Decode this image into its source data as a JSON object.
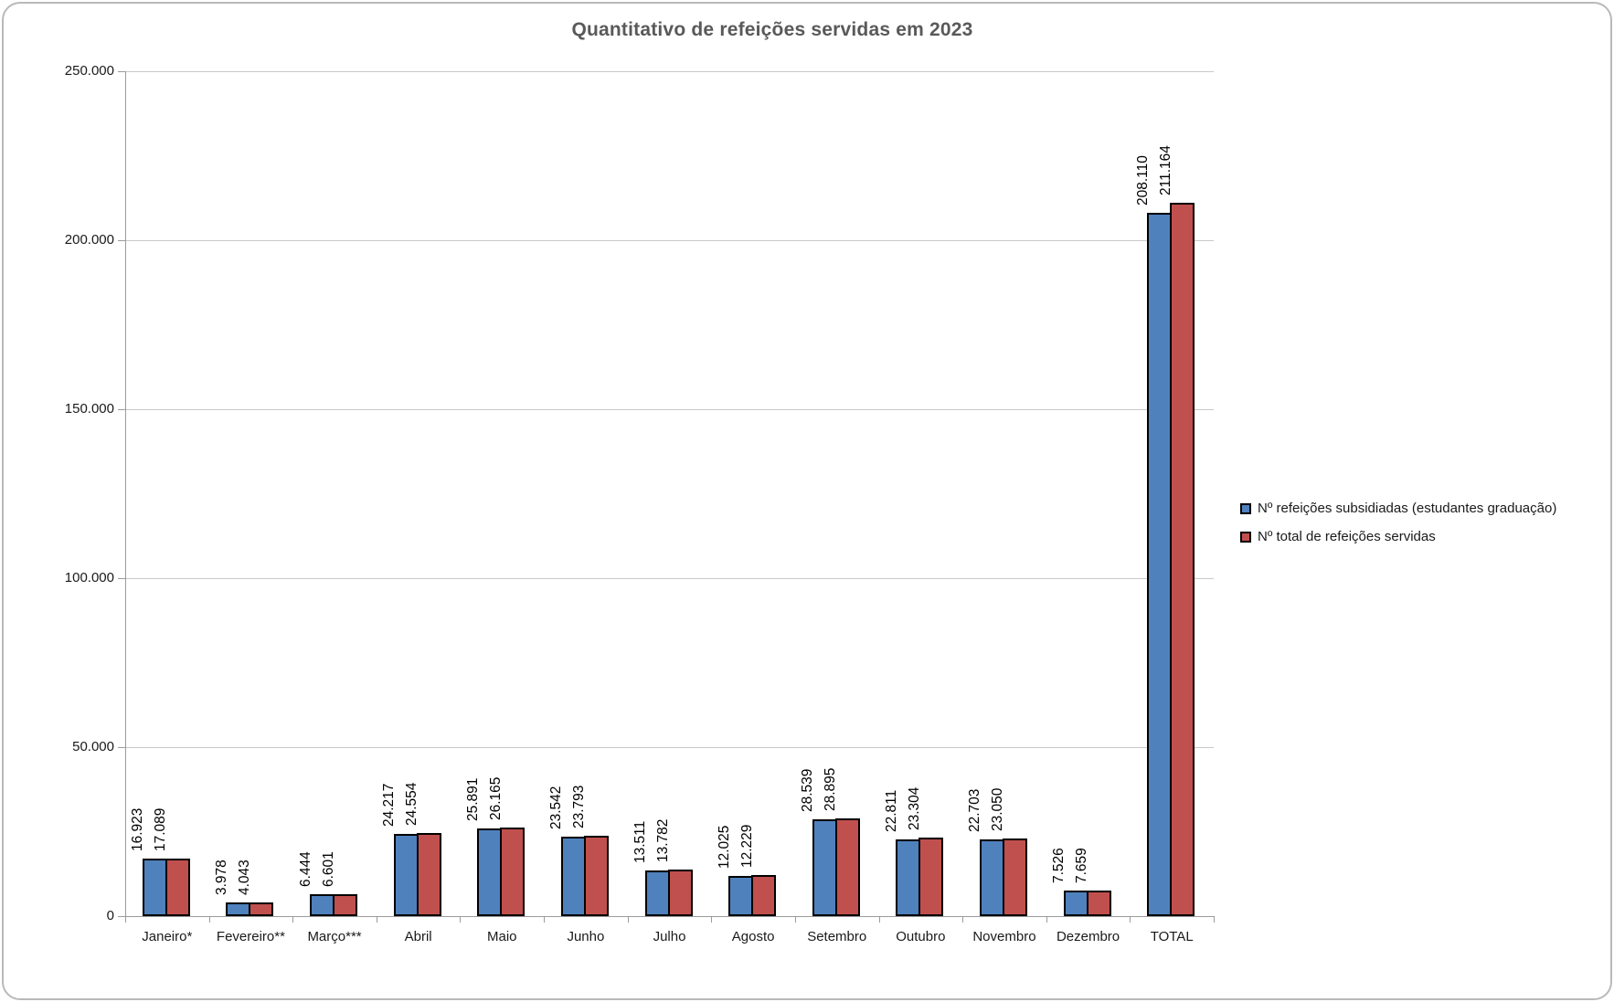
{
  "title": "Quantitativo de refeições servidas em 2023",
  "colors": {
    "series1": "#4F81BD",
    "series2": "#C0504D",
    "title_text": "#595959",
    "bar_border": "#000000",
    "gridline": "#C9C9C9",
    "axis": "#9B9B9B",
    "frame_border": "#B9B9B9"
  },
  "legend": {
    "items": [
      {
        "label": "Nº refeições subsidiadas (estudantes graduação)",
        "color_key": "series1"
      },
      {
        "label": "Nº total de refeições servidas",
        "color_key": "series2"
      }
    ]
  },
  "chart_data": {
    "type": "bar",
    "title": "Quantitativo de refeições servidas em 2023",
    "xlabel": "",
    "ylabel": "",
    "categories": [
      "Janeiro*",
      "Fevereiro**",
      "Março***",
      "Abril",
      "Maio",
      "Junho",
      "Julho",
      "Agosto",
      "Setembro",
      "Outubro",
      "Novembro",
      "Dezembro",
      "TOTAL"
    ],
    "series": [
      {
        "name": "Nº refeições subsidiadas (estudantes graduação)",
        "color": "#4F81BD",
        "values": [
          16923,
          3978,
          6444,
          24217,
          25891,
          23542,
          13511,
          12025,
          28539,
          22811,
          22703,
          7526,
          208110
        ],
        "value_labels": [
          "16.923",
          "3.978",
          "6.444",
          "24.217",
          "25.891",
          "23.542",
          "13.511",
          "12.025",
          "28.539",
          "22.811",
          "22.703",
          "7.526",
          "208.110"
        ]
      },
      {
        "name": "Nº total de refeições servidas",
        "color": "#C0504D",
        "values": [
          17089,
          4043,
          6601,
          24554,
          26165,
          23793,
          13782,
          12229,
          28895,
          23304,
          23050,
          7659,
          211164
        ],
        "value_labels": [
          "17.089",
          "4.043",
          "6.601",
          "24.554",
          "26.165",
          "23.793",
          "13.782",
          "12.229",
          "28.895",
          "23.304",
          "23.050",
          "7.659",
          "211.164"
        ]
      }
    ],
    "ylim": [
      0,
      250000
    ],
    "ytick_interval": 50000,
    "ytick_labels": [
      "0",
      "50.000",
      "100.000",
      "150.000",
      "200.000",
      "250.000"
    ],
    "grid": true,
    "legend_position": "right",
    "data_labels_style": "rotated 90° above bars",
    "number_format": "thousands separated by dot"
  }
}
